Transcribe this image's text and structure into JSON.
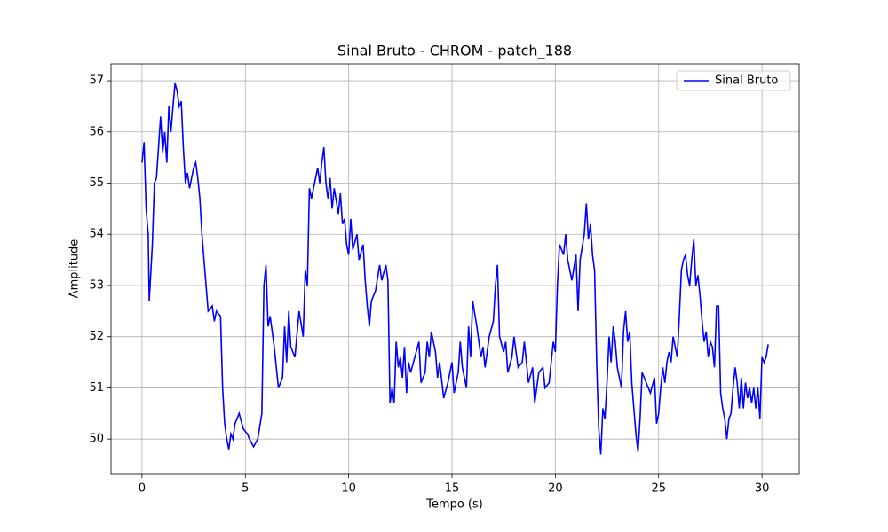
{
  "chart_data": {
    "type": "line",
    "title": "Sinal Bruto - CHROM - patch_188",
    "x_label": "Tempo (s)",
    "y_label": "Amplitude",
    "x": [
      0,
      0.1,
      0.2,
      0.3,
      0.35,
      0.5,
      0.6,
      0.7,
      0.8,
      0.9,
      1.0,
      1.1,
      1.2,
      1.3,
      1.4,
      1.5,
      1.6,
      1.7,
      1.8,
      1.9,
      2.0,
      2.1,
      2.2,
      2.3,
      2.5,
      2.6,
      2.7,
      2.8,
      2.9,
      3.0,
      3.1,
      3.2,
      3.4,
      3.5,
      3.6,
      3.8,
      3.9,
      4.0,
      4.1,
      4.2,
      4.3,
      4.4,
      4.5,
      4.7,
      4.9,
      5.1,
      5.2,
      5.4,
      5.6,
      5.8,
      5.9,
      6.0,
      6.1,
      6.2,
      6.4,
      6.6,
      6.8,
      6.9,
      7.0,
      7.1,
      7.2,
      7.4,
      7.6,
      7.8,
      7.9,
      8.0,
      8.1,
      8.2,
      8.3,
      8.5,
      8.6,
      8.7,
      8.8,
      8.9,
      9.0,
      9.1,
      9.2,
      9.3,
      9.5,
      9.6,
      9.7,
      9.8,
      9.9,
      10.0,
      10.1,
      10.2,
      10.4,
      10.5,
      10.7,
      10.8,
      10.9,
      11.0,
      11.1,
      11.3,
      11.5,
      11.6,
      11.8,
      11.9,
      12.0,
      12.1,
      12.2,
      12.3,
      12.4,
      12.5,
      12.6,
      12.7,
      12.8,
      12.9,
      13.0,
      13.2,
      13.4,
      13.5,
      13.7,
      13.8,
      13.9,
      14.0,
      14.2,
      14.3,
      14.4,
      14.6,
      14.8,
      15.0,
      15.1,
      15.3,
      15.4,
      15.5,
      15.7,
      15.8,
      15.9,
      16.0,
      16.2,
      16.4,
      16.5,
      16.6,
      16.8,
      17.0,
      17.1,
      17.2,
      17.3,
      17.5,
      17.6,
      17.7,
      17.9,
      18.0,
      18.2,
      18.4,
      18.5,
      18.7,
      18.9,
      19.0,
      19.2,
      19.4,
      19.5,
      19.7,
      19.9,
      20.0,
      20.1,
      20.2,
      20.4,
      20.5,
      20.6,
      20.8,
      21.0,
      21.1,
      21.2,
      21.4,
      21.5,
      21.6,
      21.7,
      21.8,
      21.9,
      22.0,
      22.1,
      22.2,
      22.3,
      22.4,
      22.5,
      22.6,
      22.7,
      22.8,
      22.9,
      23.0,
      23.2,
      23.3,
      23.4,
      23.5,
      23.6,
      23.7,
      23.8,
      23.9,
      24.0,
      24.1,
      24.2,
      24.4,
      24.6,
      24.8,
      24.9,
      25.0,
      25.1,
      25.2,
      25.3,
      25.4,
      25.5,
      25.6,
      25.7,
      25.8,
      25.9,
      26.0,
      26.1,
      26.2,
      26.3,
      26.4,
      26.5,
      26.6,
      26.7,
      26.8,
      26.9,
      27.0,
      27.1,
      27.2,
      27.3,
      27.4,
      27.5,
      27.6,
      27.7,
      27.8,
      27.9,
      28.0,
      28.1,
      28.2,
      28.3,
      28.4,
      28.5,
      28.6,
      28.7,
      28.8,
      28.9,
      29.0,
      29.1,
      29.2,
      29.3,
      29.4,
      29.5,
      29.6,
      29.7,
      29.8,
      29.9,
      30.0,
      30.1,
      30.2,
      30.3
    ],
    "series": [
      {
        "name": "Sinal Bruto",
        "color": "#0000ff",
        "values": [
          55.4,
          55.8,
          54.5,
          54.0,
          52.7,
          53.8,
          55.0,
          55.1,
          55.7,
          56.3,
          55.6,
          56.0,
          55.4,
          56.5,
          56.0,
          56.5,
          56.95,
          56.8,
          56.5,
          56.6,
          55.7,
          55.0,
          55.2,
          54.9,
          55.3,
          55.4,
          55.1,
          54.7,
          54.0,
          53.5,
          53.0,
          52.5,
          52.6,
          52.3,
          52.5,
          52.4,
          51.0,
          50.3,
          50.0,
          49.8,
          50.1,
          50.0,
          50.3,
          50.5,
          50.2,
          50.1,
          50.0,
          49.85,
          50.0,
          50.5,
          53.0,
          53.4,
          52.2,
          52.4,
          51.8,
          51.0,
          51.2,
          52.2,
          51.5,
          52.5,
          51.8,
          51.6,
          52.5,
          52.0,
          53.3,
          53.0,
          54.9,
          54.7,
          54.9,
          55.3,
          55.0,
          55.4,
          55.7,
          55.0,
          54.7,
          55.1,
          54.5,
          54.9,
          54.4,
          54.8,
          54.2,
          54.3,
          53.8,
          53.6,
          54.3,
          53.7,
          54.0,
          53.5,
          53.8,
          53.1,
          52.6,
          52.2,
          52.7,
          52.9,
          53.4,
          53.1,
          53.4,
          53.1,
          50.7,
          51.0,
          50.7,
          51.9,
          51.4,
          51.6,
          51.2,
          51.8,
          50.9,
          51.5,
          51.3,
          51.6,
          51.9,
          51.1,
          51.3,
          51.9,
          51.6,
          52.1,
          51.7,
          51.2,
          51.5,
          50.8,
          51.1,
          51.5,
          50.9,
          51.3,
          51.9,
          51.4,
          51.0,
          52.2,
          51.6,
          52.7,
          52.2,
          51.6,
          51.8,
          51.4,
          52.0,
          52.3,
          53.0,
          53.4,
          52.0,
          51.7,
          51.9,
          51.3,
          51.6,
          52.0,
          51.4,
          51.5,
          51.9,
          51.1,
          51.4,
          50.7,
          51.3,
          51.4,
          51.0,
          51.1,
          51.9,
          51.7,
          53.0,
          53.8,
          53.6,
          54.0,
          53.5,
          53.1,
          53.6,
          52.5,
          53.5,
          54.0,
          54.6,
          53.9,
          54.2,
          53.6,
          53.3,
          51.5,
          50.2,
          49.7,
          50.6,
          50.4,
          51.1,
          52.0,
          51.5,
          52.2,
          51.9,
          51.4,
          51.0,
          52.1,
          52.5,
          51.9,
          52.1,
          51.1,
          50.6,
          50.1,
          49.75,
          50.4,
          51.3,
          51.1,
          50.9,
          51.2,
          50.3,
          50.5,
          51.0,
          51.4,
          51.1,
          51.5,
          51.7,
          51.5,
          52.0,
          51.8,
          51.6,
          52.4,
          53.3,
          53.5,
          53.6,
          53.2,
          53.0,
          53.5,
          53.9,
          53.0,
          53.2,
          52.8,
          52.3,
          51.9,
          52.1,
          51.6,
          51.9,
          51.8,
          51.4,
          52.6,
          52.6,
          50.9,
          50.6,
          50.4,
          50.0,
          50.4,
          50.5,
          51.0,
          51.4,
          51.1,
          50.6,
          51.2,
          50.6,
          51.1,
          50.8,
          51.0,
          50.7,
          51.0,
          50.6,
          51.0,
          50.4,
          51.6,
          51.5,
          51.6,
          51.85
        ]
      }
    ],
    "xlim": [
      -1.5,
      31.8
    ],
    "ylim": [
      49.31,
      57.33
    ],
    "xticks": [
      0,
      5,
      10,
      15,
      20,
      25,
      30
    ],
    "yticks": [
      50,
      51,
      52,
      53,
      54,
      55,
      56,
      57
    ],
    "grid": true,
    "legend": "upper right"
  }
}
